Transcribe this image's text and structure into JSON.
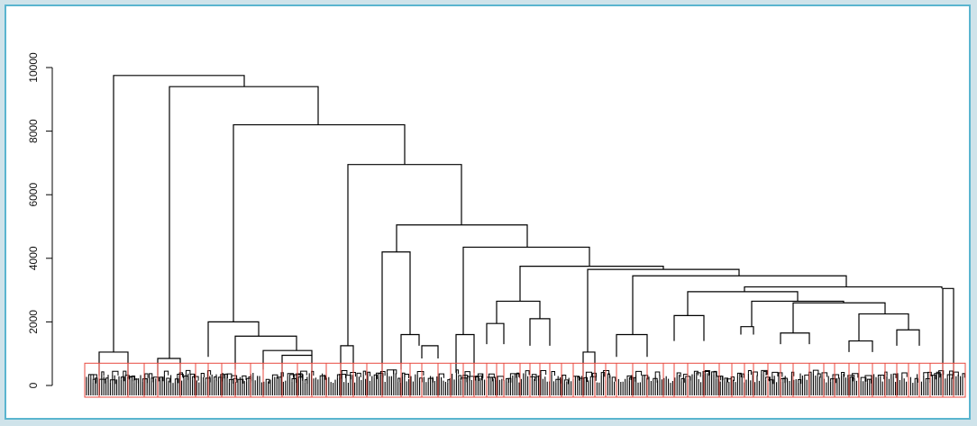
{
  "chart_data": {
    "type": "dendrogram",
    "y_axis": {
      "ylim": [
        0,
        10000
      ],
      "ticks": [
        0,
        2000,
        4000,
        6000,
        8000,
        10000
      ],
      "tick_labels": [
        "0",
        "2000",
        "4000",
        "6000",
        "8000",
        "10000"
      ]
    },
    "merge_heights_major": [
      9750,
      9400,
      8200,
      6950,
      5050,
      4350,
      4200,
      3750,
      3650,
      3450,
      3100,
      3050,
      2950,
      2650,
      2600,
      2200,
      2100,
      2000,
      1950,
      1850,
      1650,
      1600,
      1600,
      1550,
      1400,
      1400,
      1300,
      1250,
      1250,
      1200,
      1100,
      1050
    ],
    "cut_height": 700,
    "colors": {
      "tree": "#000000",
      "cluster_boxes": "#e8493f",
      "frame": "#5ab5cf",
      "background": "#cfe3ea"
    }
  }
}
